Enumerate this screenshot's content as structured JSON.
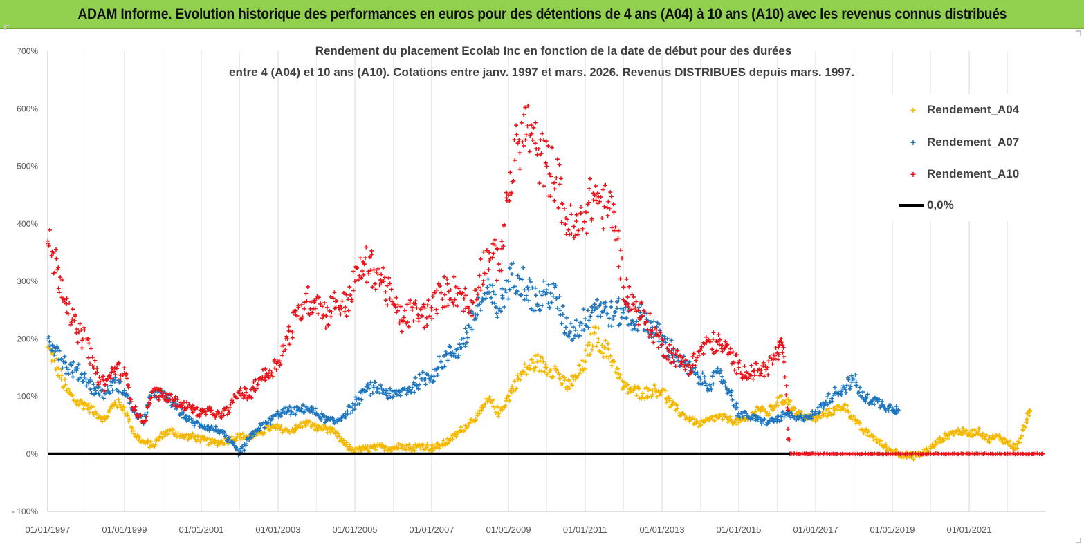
{
  "banner": {
    "title": "ADAM Informe. Evolution historique des performances en euros pour des détentions de 4 ans (A04) à 10 ans (A10) avec les revenus connus distribués"
  },
  "chart_data": {
    "type": "scatter",
    "title_line1": "Rendement du placement Ecolab Inc en fonction de la date de début pour des durées",
    "title_line2": "entre 4 (A04) et 10 ans (A10). Cotations entre janv. 1997 et mars. 2026. Revenus DISTRIBUES depuis mars. 1997.",
    "xlabel": "",
    "ylabel": "",
    "x_range": [
      "1997-01-01",
      "2023-01-01"
    ],
    "ylim": [
      -100,
      700
    ],
    "y_ticks": [
      -100,
      0,
      100,
      200,
      300,
      400,
      500,
      600,
      700
    ],
    "y_tick_labels": [
      "- 100%",
      "0%",
      "100%",
      "200%",
      "300%",
      "400%",
      "500%",
      "600%",
      "700%"
    ],
    "x_tick_labels": [
      "01/01/1997",
      "01/01/1999",
      "01/01/2001",
      "01/01/2003",
      "01/01/2005",
      "01/01/2007",
      "01/01/2009",
      "01/01/2011",
      "01/01/2013",
      "01/01/2015",
      "01/01/2017",
      "01/01/2019",
      "01/01/2021"
    ],
    "grid": "vertical",
    "legend_position": "top-right",
    "series": [
      {
        "name": "Rendement_A04",
        "color": "#f5b800",
        "marker": "+",
        "points": [
          [
            "1997-01",
            185
          ],
          [
            "1997-04",
            150
          ],
          [
            "1997-07",
            110
          ],
          [
            "1997-10",
            90
          ],
          [
            "1998-01",
            85
          ],
          [
            "1998-04",
            70
          ],
          [
            "1998-07",
            60
          ],
          [
            "1998-10",
            90
          ],
          [
            "1999-01",
            80
          ],
          [
            "1999-04",
            35
          ],
          [
            "1999-07",
            20
          ],
          [
            "1999-10",
            15
          ],
          [
            "2000-01",
            35
          ],
          [
            "2000-04",
            40
          ],
          [
            "2000-07",
            30
          ],
          [
            "2000-10",
            30
          ],
          [
            "2001-01",
            25
          ],
          [
            "2001-04",
            20
          ],
          [
            "2001-07",
            20
          ],
          [
            "2001-10",
            25
          ],
          [
            "2002-01",
            30
          ],
          [
            "2002-04",
            30
          ],
          [
            "2002-07",
            35
          ],
          [
            "2002-10",
            45
          ],
          [
            "2003-01",
            45
          ],
          [
            "2003-04",
            40
          ],
          [
            "2003-07",
            45
          ],
          [
            "2003-10",
            55
          ],
          [
            "2004-01",
            45
          ],
          [
            "2004-04",
            45
          ],
          [
            "2004-07",
            35
          ],
          [
            "2004-10",
            15
          ],
          [
            "2005-01",
            5
          ],
          [
            "2005-04",
            8
          ],
          [
            "2005-07",
            10
          ],
          [
            "2005-10",
            12
          ],
          [
            "2006-01",
            10
          ],
          [
            "2006-04",
            15
          ],
          [
            "2006-07",
            10
          ],
          [
            "2006-10",
            15
          ],
          [
            "2007-01",
            10
          ],
          [
            "2007-04",
            15
          ],
          [
            "2007-07",
            25
          ],
          [
            "2007-10",
            40
          ],
          [
            "2008-01",
            55
          ],
          [
            "2008-04",
            70
          ],
          [
            "2008-07",
            95
          ],
          [
            "2008-10",
            70
          ],
          [
            "2009-01",
            100
          ],
          [
            "2009-04",
            130
          ],
          [
            "2009-07",
            150
          ],
          [
            "2009-10",
            160
          ],
          [
            "2010-01",
            150
          ],
          [
            "2010-04",
            145
          ],
          [
            "2010-07",
            115
          ],
          [
            "2010-10",
            130
          ],
          [
            "2011-01",
            160
          ],
          [
            "2011-04",
            210
          ],
          [
            "2011-07",
            185
          ],
          [
            "2011-10",
            160
          ],
          [
            "2012-01",
            115
          ],
          [
            "2012-04",
            110
          ],
          [
            "2012-07",
            105
          ],
          [
            "2012-10",
            110
          ],
          [
            "2013-01",
            110
          ],
          [
            "2013-04",
            85
          ],
          [
            "2013-07",
            70
          ],
          [
            "2013-10",
            60
          ],
          [
            "2014-01",
            50
          ],
          [
            "2014-04",
            60
          ],
          [
            "2014-07",
            65
          ],
          [
            "2014-10",
            60
          ],
          [
            "2015-01",
            55
          ],
          [
            "2015-04",
            60
          ],
          [
            "2015-07",
            80
          ],
          [
            "2015-10",
            70
          ],
          [
            "2016-01",
            90
          ],
          [
            "2016-04",
            95
          ],
          [
            "2016-07",
            70
          ],
          [
            "2016-10",
            65
          ],
          [
            "2017-01",
            60
          ],
          [
            "2017-04",
            70
          ],
          [
            "2017-07",
            75
          ],
          [
            "2017-10",
            85
          ],
          [
            "2018-01",
            60
          ],
          [
            "2018-04",
            40
          ],
          [
            "2018-07",
            30
          ],
          [
            "2018-10",
            15
          ],
          [
            "2019-01",
            5
          ],
          [
            "2019-04",
            0
          ],
          [
            "2019-07",
            -5
          ],
          [
            "2019-10",
            0
          ],
          [
            "2020-01",
            10
          ],
          [
            "2020-04",
            25
          ],
          [
            "2020-07",
            35
          ],
          [
            "2020-10",
            40
          ],
          [
            "2021-01",
            35
          ],
          [
            "2021-04",
            40
          ],
          [
            "2021-07",
            25
          ],
          [
            "2021-10",
            30
          ],
          [
            "2022-01",
            20
          ],
          [
            "2022-04",
            10
          ],
          [
            "2022-07",
            60
          ],
          [
            "2022-08",
            75
          ]
        ]
      },
      {
        "name": "Rendement_A07",
        "color": "#1f77c0",
        "marker": "+",
        "points": [
          [
            "1997-01",
            200
          ],
          [
            "1997-04",
            185
          ],
          [
            "1997-07",
            150
          ],
          [
            "1997-10",
            145
          ],
          [
            "1998-01",
            130
          ],
          [
            "1998-04",
            110
          ],
          [
            "1998-07",
            105
          ],
          [
            "1998-10",
            125
          ],
          [
            "1999-01",
            110
          ],
          [
            "1999-04",
            75
          ],
          [
            "1999-07",
            55
          ],
          [
            "1999-10",
            110
          ],
          [
            "2000-01",
            100
          ],
          [
            "2000-04",
            90
          ],
          [
            "2000-07",
            70
          ],
          [
            "2000-10",
            55
          ],
          [
            "2001-01",
            50
          ],
          [
            "2001-04",
            45
          ],
          [
            "2001-07",
            40
          ],
          [
            "2001-10",
            20
          ],
          [
            "2002-01",
            0
          ],
          [
            "2002-04",
            25
          ],
          [
            "2002-07",
            45
          ],
          [
            "2002-10",
            55
          ],
          [
            "2003-01",
            70
          ],
          [
            "2003-04",
            75
          ],
          [
            "2003-07",
            75
          ],
          [
            "2003-10",
            80
          ],
          [
            "2004-01",
            70
          ],
          [
            "2004-04",
            60
          ],
          [
            "2004-07",
            55
          ],
          [
            "2004-10",
            70
          ],
          [
            "2005-01",
            85
          ],
          [
            "2005-04",
            110
          ],
          [
            "2005-07",
            115
          ],
          [
            "2005-10",
            110
          ],
          [
            "2006-01",
            100
          ],
          [
            "2006-04",
            110
          ],
          [
            "2006-07",
            115
          ],
          [
            "2006-10",
            130
          ],
          [
            "2007-01",
            135
          ],
          [
            "2007-04",
            160
          ],
          [
            "2007-07",
            175
          ],
          [
            "2007-10",
            185
          ],
          [
            "2008-01",
            220
          ],
          [
            "2008-04",
            260
          ],
          [
            "2008-07",
            280
          ],
          [
            "2008-10",
            250
          ],
          [
            "2009-01",
            300
          ],
          [
            "2009-04",
            310
          ],
          [
            "2009-07",
            290
          ],
          [
            "2009-10",
            260
          ],
          [
            "2010-01",
            280
          ],
          [
            "2010-04",
            270
          ],
          [
            "2010-07",
            220
          ],
          [
            "2010-10",
            215
          ],
          [
            "2011-01",
            235
          ],
          [
            "2011-04",
            260
          ],
          [
            "2011-07",
            250
          ],
          [
            "2011-10",
            240
          ],
          [
            "2012-01",
            250
          ],
          [
            "2012-04",
            230
          ],
          [
            "2012-07",
            240
          ],
          [
            "2012-10",
            220
          ],
          [
            "2013-01",
            200
          ],
          [
            "2013-04",
            180
          ],
          [
            "2013-07",
            160
          ],
          [
            "2013-10",
            145
          ],
          [
            "2014-01",
            130
          ],
          [
            "2014-04",
            120
          ],
          [
            "2014-07",
            140
          ],
          [
            "2014-10",
            110
          ],
          [
            "2015-01",
            70
          ],
          [
            "2015-04",
            65
          ],
          [
            "2015-07",
            60
          ],
          [
            "2015-10",
            55
          ],
          [
            "2016-01",
            60
          ],
          [
            "2016-04",
            70
          ],
          [
            "2016-07",
            60
          ],
          [
            "2016-10",
            65
          ],
          [
            "2017-01",
            70
          ],
          [
            "2017-04",
            90
          ],
          [
            "2017-07",
            105
          ],
          [
            "2017-10",
            115
          ],
          [
            "2018-01",
            130
          ],
          [
            "2018-04",
            95
          ],
          [
            "2018-07",
            95
          ],
          [
            "2018-10",
            85
          ],
          [
            "2019-01",
            80
          ],
          [
            "2019-03",
            75
          ]
        ]
      },
      {
        "name": "Rendement_A10",
        "color": "#e8141a",
        "marker": "+",
        "points": [
          [
            "1997-01",
            370
          ],
          [
            "1997-04",
            320
          ],
          [
            "1997-07",
            270
          ],
          [
            "1997-10",
            210
          ],
          [
            "1998-01",
            200
          ],
          [
            "1998-04",
            140
          ],
          [
            "1998-07",
            120
          ],
          [
            "1998-10",
            150
          ],
          [
            "1999-01",
            140
          ],
          [
            "1999-04",
            80
          ],
          [
            "1999-07",
            55
          ],
          [
            "1999-10",
            110
          ],
          [
            "2000-01",
            100
          ],
          [
            "2000-04",
            95
          ],
          [
            "2000-07",
            85
          ],
          [
            "2000-10",
            80
          ],
          [
            "2001-01",
            70
          ],
          [
            "2001-04",
            75
          ],
          [
            "2001-07",
            65
          ],
          [
            "2001-10",
            80
          ],
          [
            "2002-01",
            110
          ],
          [
            "2002-04",
            100
          ],
          [
            "2002-07",
            130
          ],
          [
            "2002-10",
            140
          ],
          [
            "2003-01",
            160
          ],
          [
            "2003-04",
            200
          ],
          [
            "2003-07",
            240
          ],
          [
            "2003-10",
            265
          ],
          [
            "2004-01",
            270
          ],
          [
            "2004-04",
            240
          ],
          [
            "2004-07",
            265
          ],
          [
            "2004-10",
            255
          ],
          [
            "2005-01",
            300
          ],
          [
            "2005-04",
            330
          ],
          [
            "2005-07",
            320
          ],
          [
            "2005-10",
            300
          ],
          [
            "2006-01",
            260
          ],
          [
            "2006-04",
            230
          ],
          [
            "2006-07",
            250
          ],
          [
            "2006-10",
            240
          ],
          [
            "2007-01",
            250
          ],
          [
            "2007-04",
            280
          ],
          [
            "2007-07",
            285
          ],
          [
            "2007-10",
            280
          ],
          [
            "2008-01",
            250
          ],
          [
            "2008-04",
            310
          ],
          [
            "2008-07",
            350
          ],
          [
            "2008-10",
            330
          ],
          [
            "2009-01",
            450
          ],
          [
            "2009-04",
            540
          ],
          [
            "2009-07",
            570
          ],
          [
            "2009-10",
            520
          ],
          [
            "2010-01",
            500
          ],
          [
            "2010-04",
            480
          ],
          [
            "2010-07",
            410
          ],
          [
            "2010-10",
            380
          ],
          [
            "2011-01",
            420
          ],
          [
            "2011-04",
            450
          ],
          [
            "2011-07",
            430
          ],
          [
            "2011-10",
            420
          ],
          [
            "2012-01",
            290
          ],
          [
            "2012-04",
            260
          ],
          [
            "2012-07",
            240
          ],
          [
            "2012-10",
            215
          ],
          [
            "2013-01",
            190
          ],
          [
            "2013-04",
            175
          ],
          [
            "2013-07",
            160
          ],
          [
            "2013-10",
            150
          ],
          [
            "2014-01",
            180
          ],
          [
            "2014-04",
            195
          ],
          [
            "2014-07",
            190
          ],
          [
            "2014-10",
            175
          ],
          [
            "2015-01",
            150
          ],
          [
            "2015-04",
            140
          ],
          [
            "2015-07",
            145
          ],
          [
            "2015-10",
            150
          ],
          [
            "2016-01",
            175
          ],
          [
            "2016-03",
            185
          ],
          [
            "2016-05",
            0
          ],
          [
            "2017-01",
            0
          ],
          [
            "2018-01",
            0
          ],
          [
            "2019-01",
            0
          ],
          [
            "2020-01",
            0
          ],
          [
            "2021-01",
            0
          ],
          [
            "2022-01",
            0
          ],
          [
            "2022-12",
            0
          ]
        ]
      },
      {
        "name": "0,0%",
        "color": "#000000",
        "marker": "line",
        "points": [
          [
            "1997-01",
            0
          ],
          [
            "2016-05",
            0
          ]
        ]
      }
    ]
  }
}
